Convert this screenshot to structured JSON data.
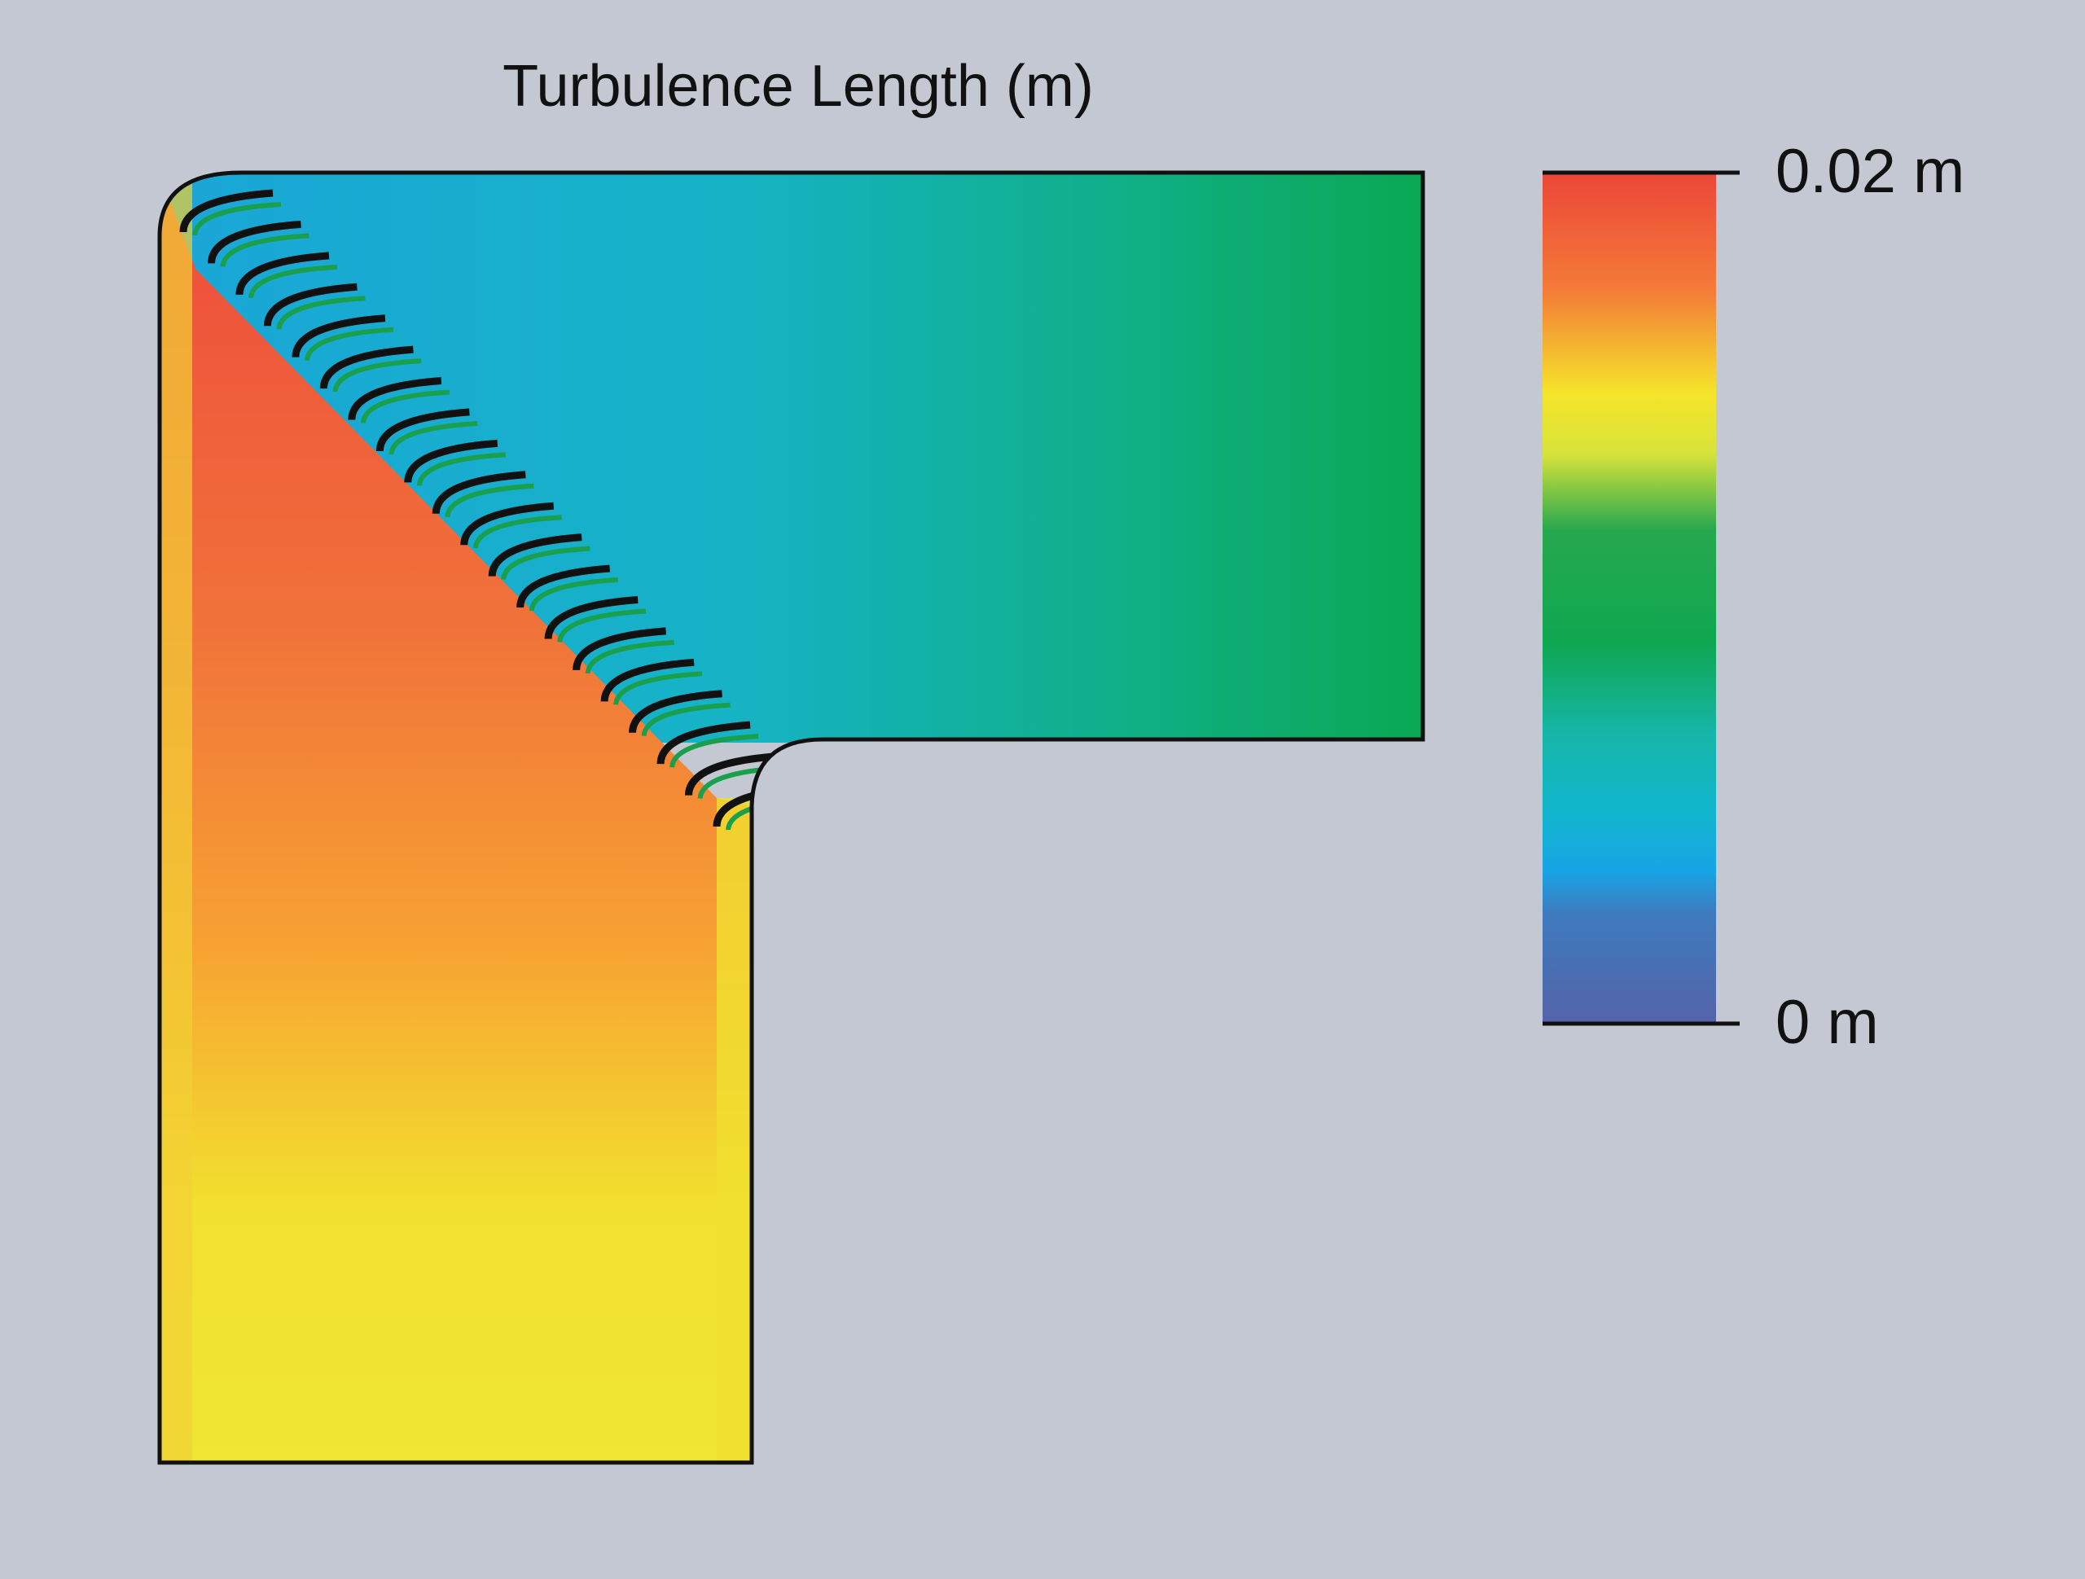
{
  "chart_data": {
    "type": "contour",
    "title": "Turbulence Length (m)",
    "colorbar": {
      "lim": [
        0,
        0.02
      ],
      "ticks": [
        {
          "value": 0,
          "label": "0 m"
        },
        {
          "value": 0.02,
          "label": "0.02 m"
        }
      ]
    }
  }
}
